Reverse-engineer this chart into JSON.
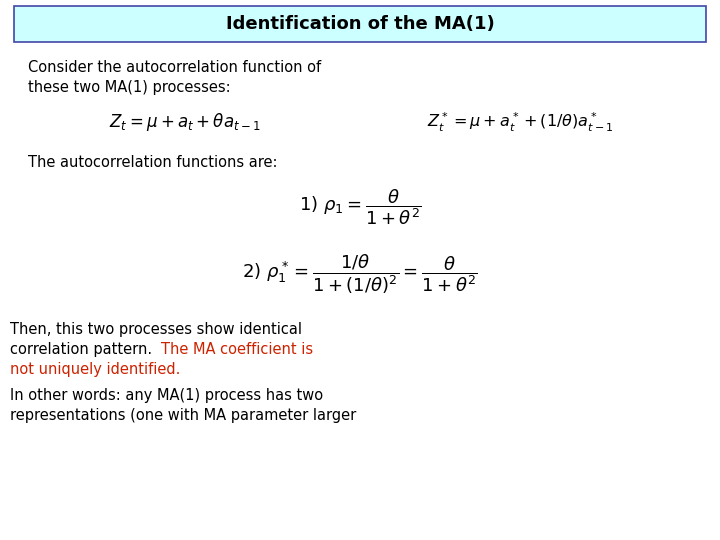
{
  "title": "Identification of the MA(1)",
  "title_bg": "#ccffff",
  "title_border": "#4444aa",
  "body_bg": "#ffffff",
  "text_color_black": "#000000",
  "text_color_red": "#cc2200",
  "monospace_font": "Courier New",
  "line1": "Consider the autocorrelation function of",
  "line2": "these two MA(1) processes:",
  "formula1": "$Z_t = \\mu+a_t+\\theta a_{t-1}$",
  "formula2": "$Z^*_t = \\mu+a^*_t+(1/\\theta)a^*_{t-1}$",
  "line3": "The autocorrelation functions are:",
  "formula3": "$1)\\ \\rho_1 = \\dfrac{\\theta}{1+\\theta^2}$",
  "formula4": "$2)\\ \\rho^*_1 = \\dfrac{1/\\theta}{1+(1/\\theta)^2} = \\dfrac{\\theta}{1+\\theta^2}$",
  "line4_black": "Then, this two processes show identical",
  "line5a_black": "correlation pattern. ",
  "line5b_red": "The MA coefficient is",
  "line6_red": "not uniquely identified.",
  "line7_black": "In other words: any MA(1) process has two",
  "line8_black": "representations (one with MA parameter larger"
}
